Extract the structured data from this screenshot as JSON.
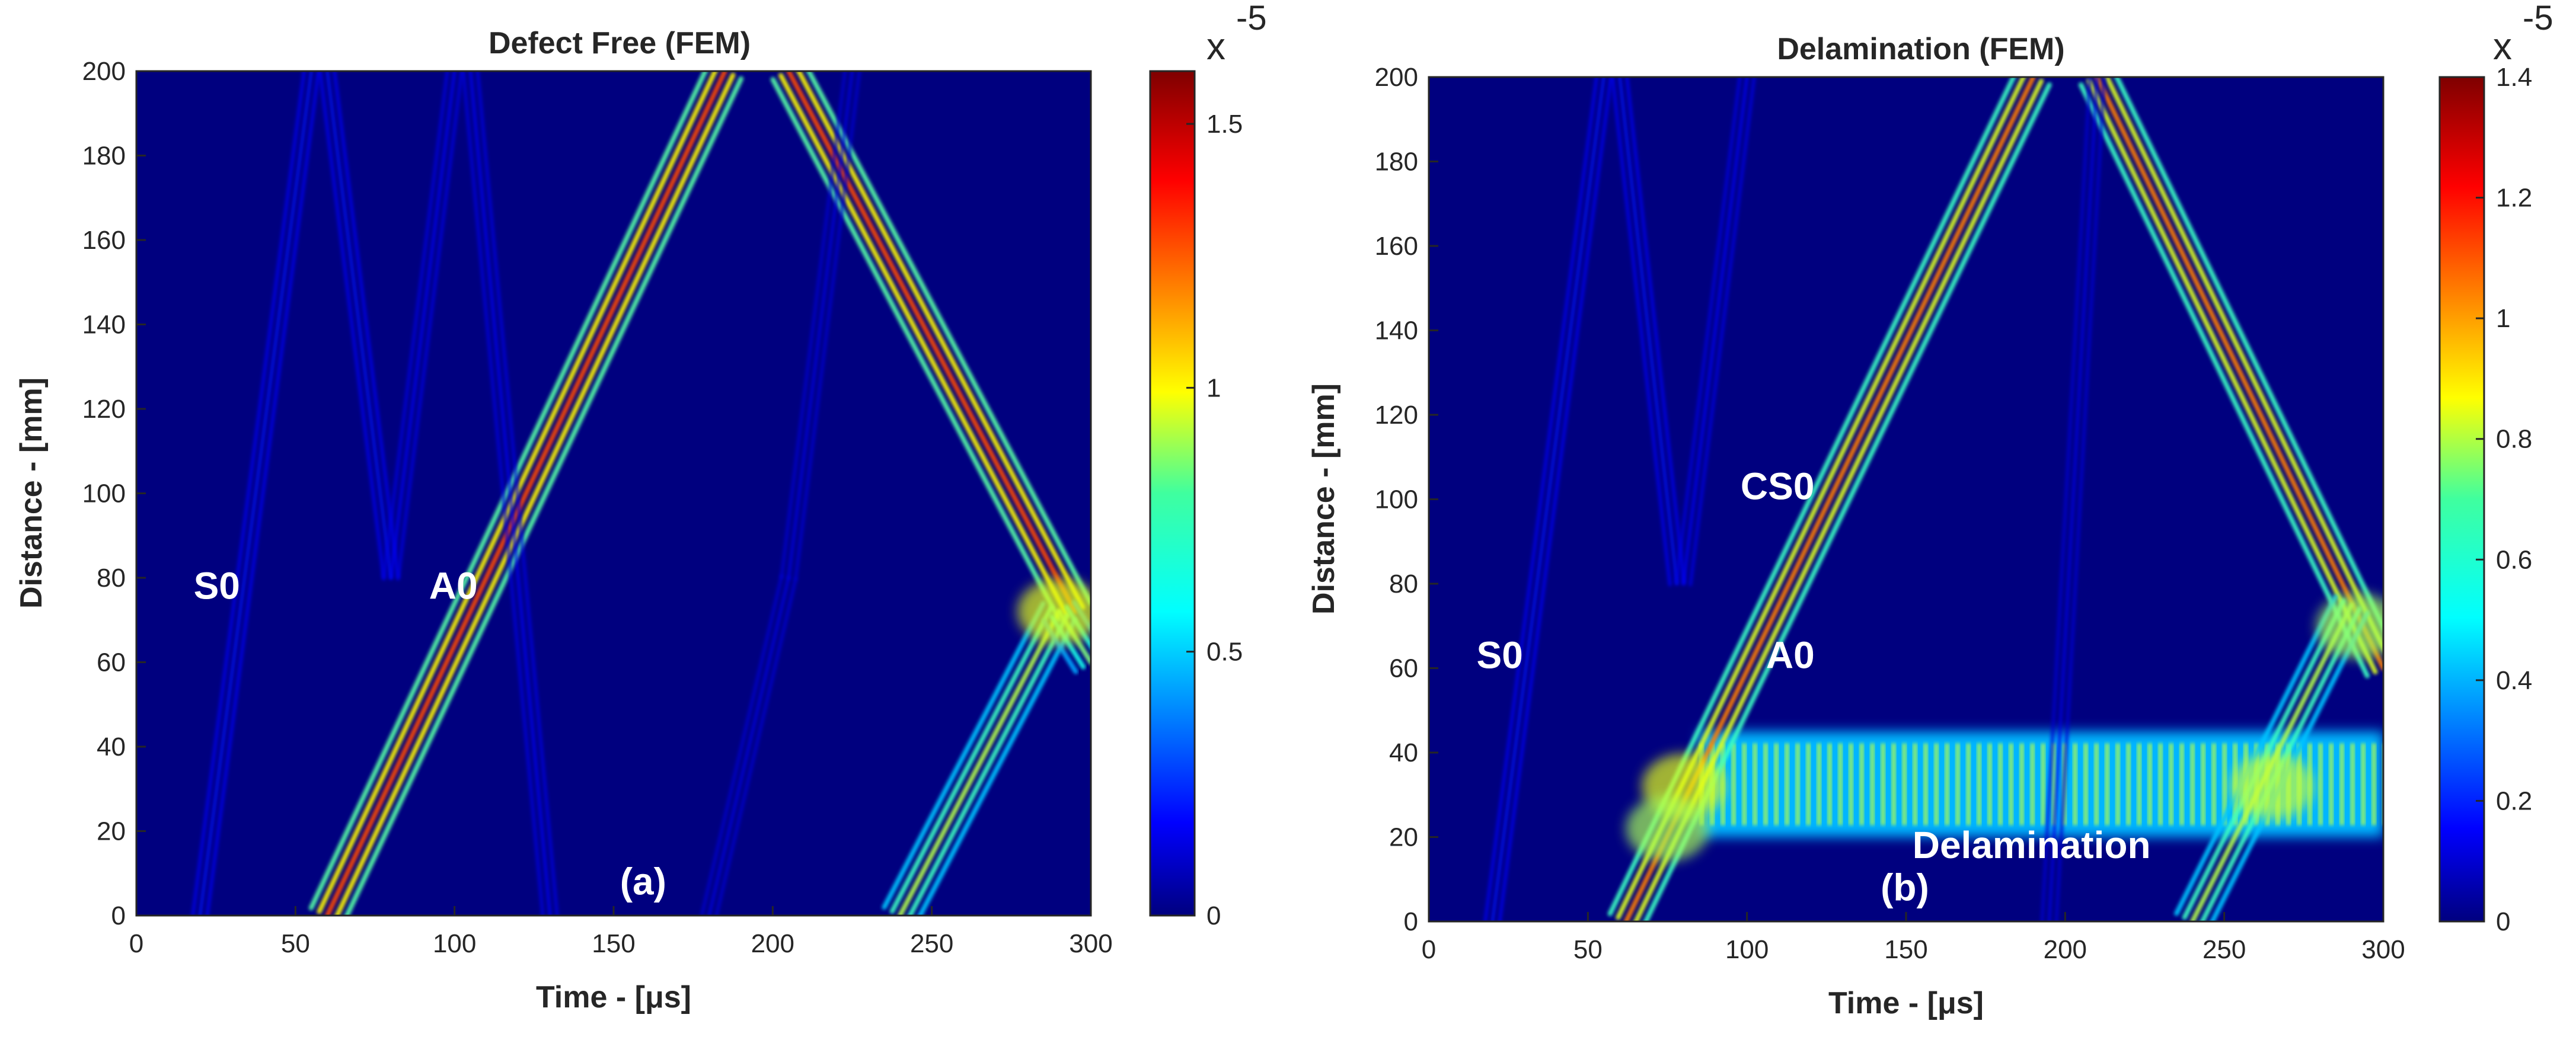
{
  "chart_data": [
    {
      "id": "panel-a",
      "type": "heatmap",
      "title": "Defect Free (FEM)",
      "xlabel": "Time - [μs]",
      "ylabel": "Distance - [mm]",
      "xlim": [
        0,
        300
      ],
      "ylim": [
        0,
        200
      ],
      "xticks": [
        0,
        50,
        100,
        150,
        200,
        250,
        300
      ],
      "yticks": [
        0,
        20,
        40,
        60,
        80,
        100,
        120,
        140,
        160,
        180,
        200
      ],
      "colorbar": {
        "min": 0,
        "max": 1.6,
        "ticks": [
          0,
          0.5,
          1,
          1.5
        ],
        "exponent_label": "x",
        "exponent": "-5"
      },
      "wave_paths": [
        {
          "name": "A0 forward",
          "strength": 0.8,
          "points": [
            [
              60,
              0
            ],
            [
              185,
              200
            ]
          ]
        },
        {
          "name": "A0 reflected",
          "strength": 0.8,
          "points": [
            [
              205,
              200
            ],
            [
              295,
              72
            ]
          ]
        },
        {
          "name": "return forward",
          "strength": 0.55,
          "points": [
            [
              240,
              0
            ],
            [
              290,
              72
            ]
          ]
        },
        {
          "name": "return backward",
          "strength": 0.5,
          "points": [
            [
              290,
              72
            ],
            [
              300,
              60
            ]
          ]
        },
        {
          "name": "S0 forward",
          "strength": 0.14,
          "points": [
            [
              20,
              0
            ],
            [
              55,
              200
            ]
          ]
        },
        {
          "name": "S0 reflected",
          "strength": 0.14,
          "points": [
            [
              60,
              200
            ],
            [
              80,
              80
            ]
          ]
        },
        {
          "name": "faint forward",
          "strength": 0.12,
          "points": [
            [
              80,
              80
            ],
            [
              100,
              200
            ]
          ]
        },
        {
          "name": "faint reflected",
          "strength": 0.12,
          "points": [
            [
              105,
              200
            ],
            [
              130,
              0
            ]
          ]
        },
        {
          "name": "faint mid",
          "strength": 0.1,
          "points": [
            [
              180,
              0
            ],
            [
              205,
              80
            ]
          ]
        },
        {
          "name": "faint mid 2",
          "strength": 0.1,
          "points": [
            [
              205,
              80
            ],
            [
              225,
              200
            ]
          ]
        }
      ],
      "hotspots": [
        {
          "t": 290,
          "d": 72,
          "strength": 1.0
        }
      ],
      "bands": [],
      "annotations": [
        {
          "text": "S0",
          "t": 18,
          "d": 75
        },
        {
          "text": "A0",
          "t": 92,
          "d": 75
        },
        {
          "text": "(a)",
          "t": 152,
          "d": 5
        }
      ]
    },
    {
      "id": "panel-b",
      "type": "heatmap",
      "title": "Delamination (FEM)",
      "xlabel": "Time - [μs]",
      "ylabel": "Distance - [mm]",
      "xlim": [
        0,
        300
      ],
      "ylim": [
        0,
        200
      ],
      "xticks": [
        0,
        50,
        100,
        150,
        200,
        250,
        300
      ],
      "yticks": [
        0,
        20,
        40,
        60,
        80,
        100,
        120,
        140,
        160,
        180,
        200
      ],
      "colorbar": {
        "min": 0,
        "max": 1.4,
        "ticks": [
          0,
          0.2,
          0.4,
          0.6,
          0.8,
          1,
          1.2,
          1.4
        ],
        "exponent_label": "x",
        "exponent": "-5"
      },
      "wave_paths": [
        {
          "name": "CS0 forward",
          "strength": 0.75,
          "points": [
            [
              62,
              0
            ],
            [
              190,
              200
            ]
          ]
        },
        {
          "name": "A0 reflected",
          "strength": 0.75,
          "points": [
            [
              210,
              200
            ],
            [
              300,
              60
            ]
          ]
        },
        {
          "name": "return forward",
          "strength": 0.55,
          "points": [
            [
              240,
              0
            ],
            [
              290,
              75
            ]
          ]
        },
        {
          "name": "S0 forward",
          "strength": 0.14,
          "points": [
            [
              20,
              0
            ],
            [
              55,
              200
            ]
          ]
        },
        {
          "name": "S0 reflected",
          "strength": 0.14,
          "points": [
            [
              60,
              200
            ],
            [
              78,
              80
            ]
          ]
        },
        {
          "name": "faint forward",
          "strength": 0.12,
          "points": [
            [
              80,
              80
            ],
            [
              100,
              200
            ]
          ]
        },
        {
          "name": "faint mid",
          "strength": 0.1,
          "points": [
            [
              195,
              0
            ],
            [
              210,
              200
            ]
          ]
        }
      ],
      "hotspots": [
        {
          "t": 80,
          "d": 32,
          "strength": 1.0
        },
        {
          "t": 75,
          "d": 22,
          "strength": 0.9
        },
        {
          "t": 265,
          "d": 32,
          "strength": 0.95
        },
        {
          "t": 292,
          "d": 70,
          "strength": 0.9
        }
      ],
      "bands": [
        {
          "t0": 85,
          "t1": 300,
          "d0": 20,
          "d1": 45,
          "strength": 0.55
        }
      ],
      "annotations": [
        {
          "text": "S0",
          "t": 15,
          "d": 60
        },
        {
          "text": "CS0",
          "t": 98,
          "d": 100
        },
        {
          "text": "A0",
          "t": 106,
          "d": 60
        },
        {
          "text": "Delamination",
          "t": 152,
          "d": 15
        },
        {
          "text": "(b)",
          "t": 142,
          "d": 5
        }
      ]
    }
  ],
  "colors": {
    "background": "#00007f",
    "axis": "#262626",
    "annotation": "#ffffff",
    "colormap": [
      "#00007f",
      "#0000ff",
      "#007fff",
      "#00ffff",
      "#7fff7f",
      "#ffff00",
      "#ff7f00",
      "#ff0000",
      "#7f0000"
    ]
  }
}
